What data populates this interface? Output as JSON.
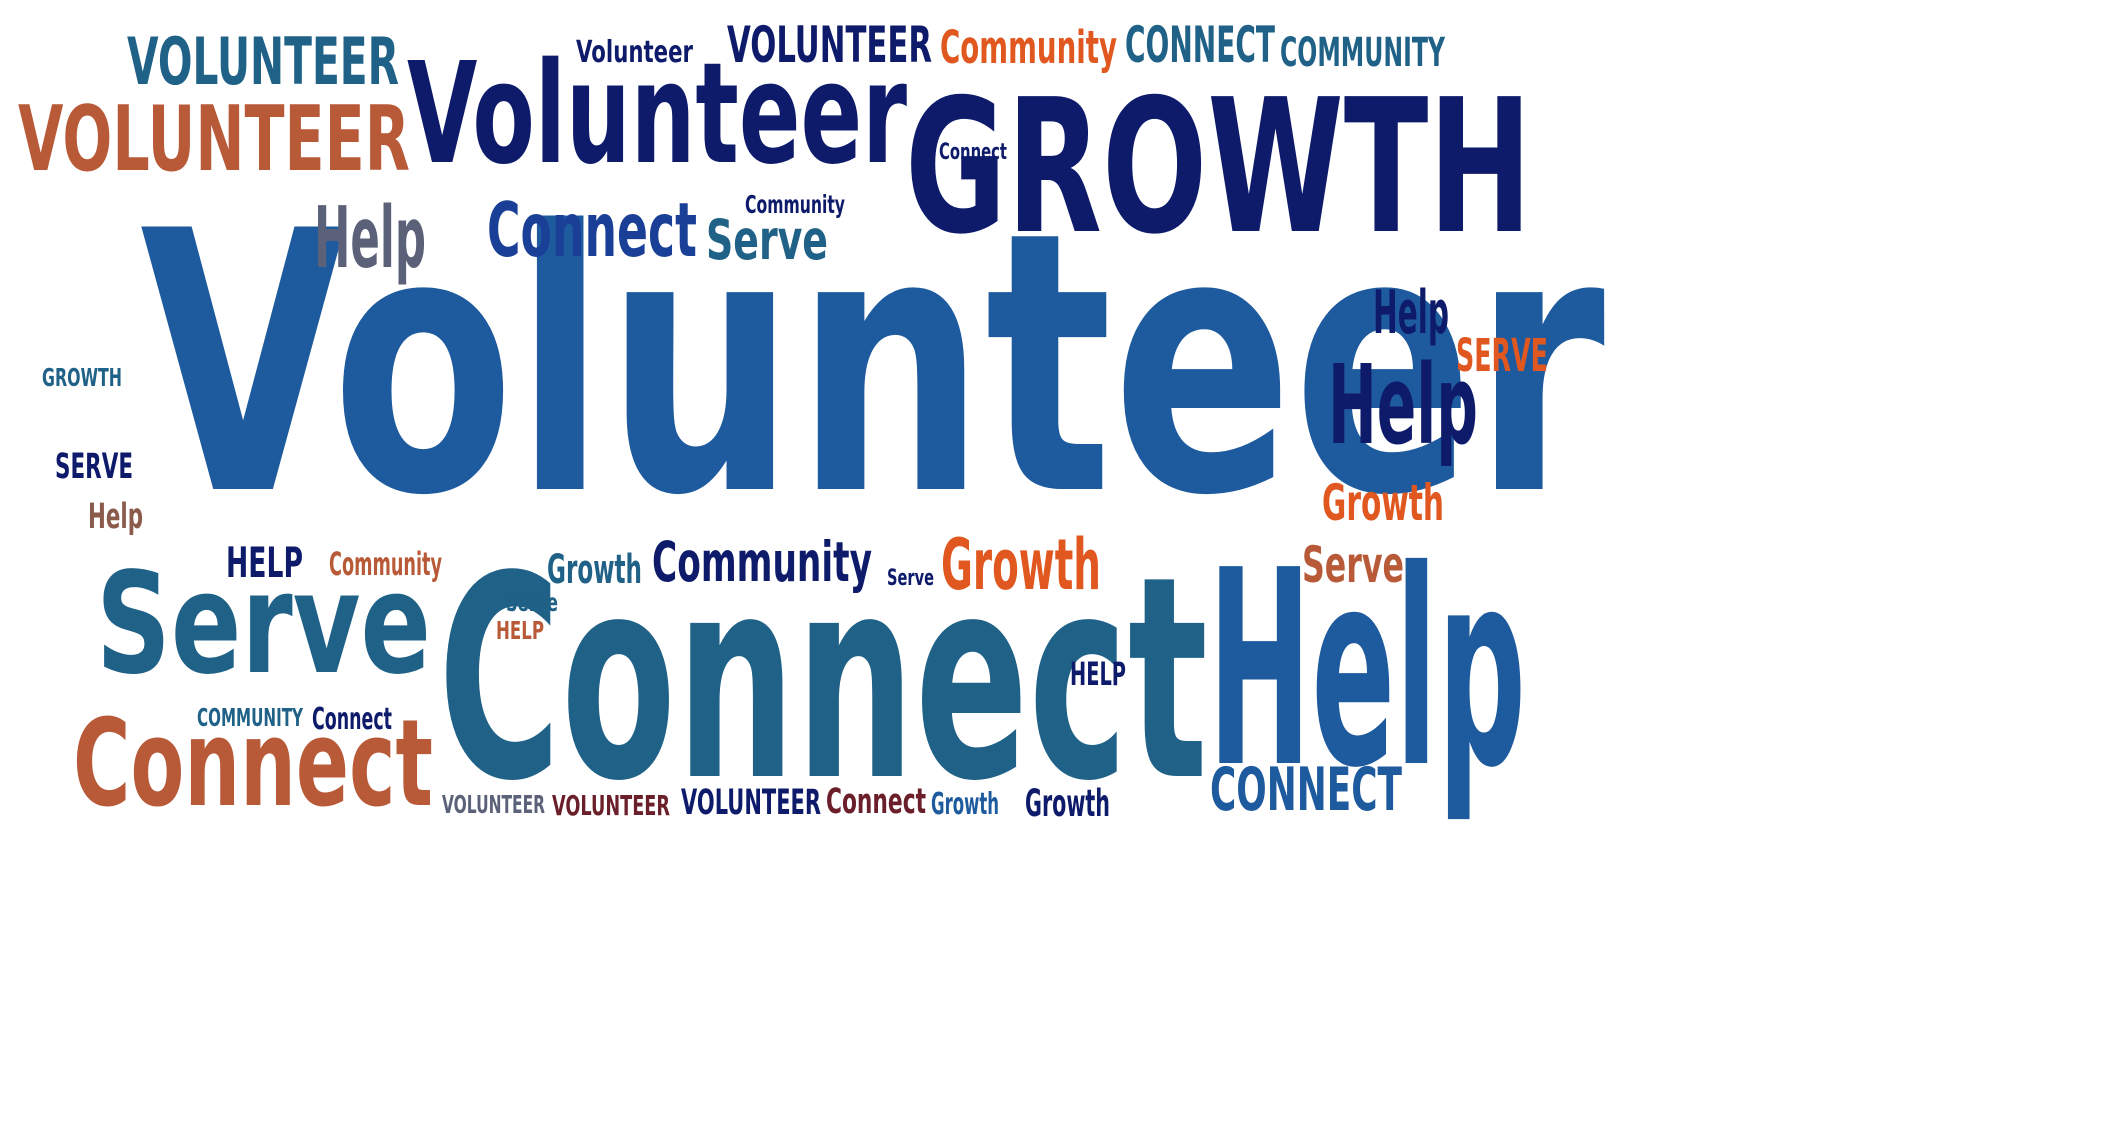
{
  "colors": {
    "navy": "#0e1b6b",
    "royal": "#1a3f96",
    "blue": "#1e5a9e",
    "teal": "#1f6187",
    "orange": "#e0581f",
    "rust": "#b85a38",
    "slate": "#5b6178",
    "maroon": "#6b1f2a",
    "brown": "#8a5a4a"
  },
  "words": [
    {
      "id": "volunteer-main",
      "text": "Volunteer"
    },
    {
      "id": "connect-main",
      "text": "Connect"
    },
    {
      "id": "help-main",
      "text": "Help"
    },
    {
      "id": "growth-top",
      "text": "GROWTH"
    },
    {
      "id": "volunteer-top",
      "text": "Volunteer"
    },
    {
      "id": "serve-left",
      "text": "Serve"
    },
    {
      "id": "connect-bottom-left",
      "text": "Connect"
    },
    {
      "id": "volunteer-caps-rust",
      "text": "VOLUNTEER"
    },
    {
      "id": "volunteer-caps-teal",
      "text": "VOLUNTEER"
    },
    {
      "id": "volunteer-small-top",
      "text": "Volunteer"
    },
    {
      "id": "volunteer-caps-navy-top",
      "text": "VOLUNTEER"
    },
    {
      "id": "community-orange-top",
      "text": "Community"
    },
    {
      "id": "connect-caps-teal-top",
      "text": "CONNECT"
    },
    {
      "id": "community-caps-top",
      "text": "COMMUNITY"
    },
    {
      "id": "connect-small-navy",
      "text": "Connect"
    },
    {
      "id": "help-slate",
      "text": "Help"
    },
    {
      "id": "connect-royal",
      "text": "Connect"
    },
    {
      "id": "serve-teal-mid",
      "text": "Serve"
    },
    {
      "id": "community-small-navy",
      "text": "Community"
    },
    {
      "id": "help-right-1",
      "text": "Help"
    },
    {
      "id": "serve-caps-orange-right",
      "text": "SERVE"
    },
    {
      "id": "help-right-2",
      "text": "Help"
    },
    {
      "id": "growth-orange-right",
      "text": "Growth"
    },
    {
      "id": "serve-rust-right",
      "text": "Serve"
    },
    {
      "id": "growth-caps-left",
      "text": "GROWTH"
    },
    {
      "id": "serve-caps-left",
      "text": "SERVE"
    },
    {
      "id": "help-brown-left",
      "text": "Help"
    },
    {
      "id": "help-caps-navy-left",
      "text": "HELP"
    },
    {
      "id": "community-rust-mid",
      "text": "Community"
    },
    {
      "id": "growth-teal-mid",
      "text": "Growth"
    },
    {
      "id": "community-navy-mid",
      "text": "Community"
    },
    {
      "id": "serve-navy-small",
      "text": "Serve"
    },
    {
      "id": "growth-orange-mid",
      "text": "Growth"
    },
    {
      "id": "serve-teal-small",
      "text": "Serve"
    },
    {
      "id": "help-caps-rust-small",
      "text": "HELP"
    },
    {
      "id": "help-caps-navy-right",
      "text": "HELP"
    },
    {
      "id": "community-caps-teal-bottom",
      "text": "COMMUNITY"
    },
    {
      "id": "connect-navy-bottom",
      "text": "Connect"
    },
    {
      "id": "connect-caps-blue-bottom",
      "text": "CONNECT"
    },
    {
      "id": "volunteer-caps-slate-bottom",
      "text": "VOLUNTEER"
    },
    {
      "id": "volunteer-caps-maroon-bottom",
      "text": "VOLUNTEER"
    },
    {
      "id": "volunteer-caps-navy-bottom",
      "text": "VOLUNTEER"
    },
    {
      "id": "connect-maroon-bottom",
      "text": "Connect"
    },
    {
      "id": "growth-blue-bottom",
      "text": "Growth"
    },
    {
      "id": "growth-navy-bottom",
      "text": "Growth"
    }
  ]
}
